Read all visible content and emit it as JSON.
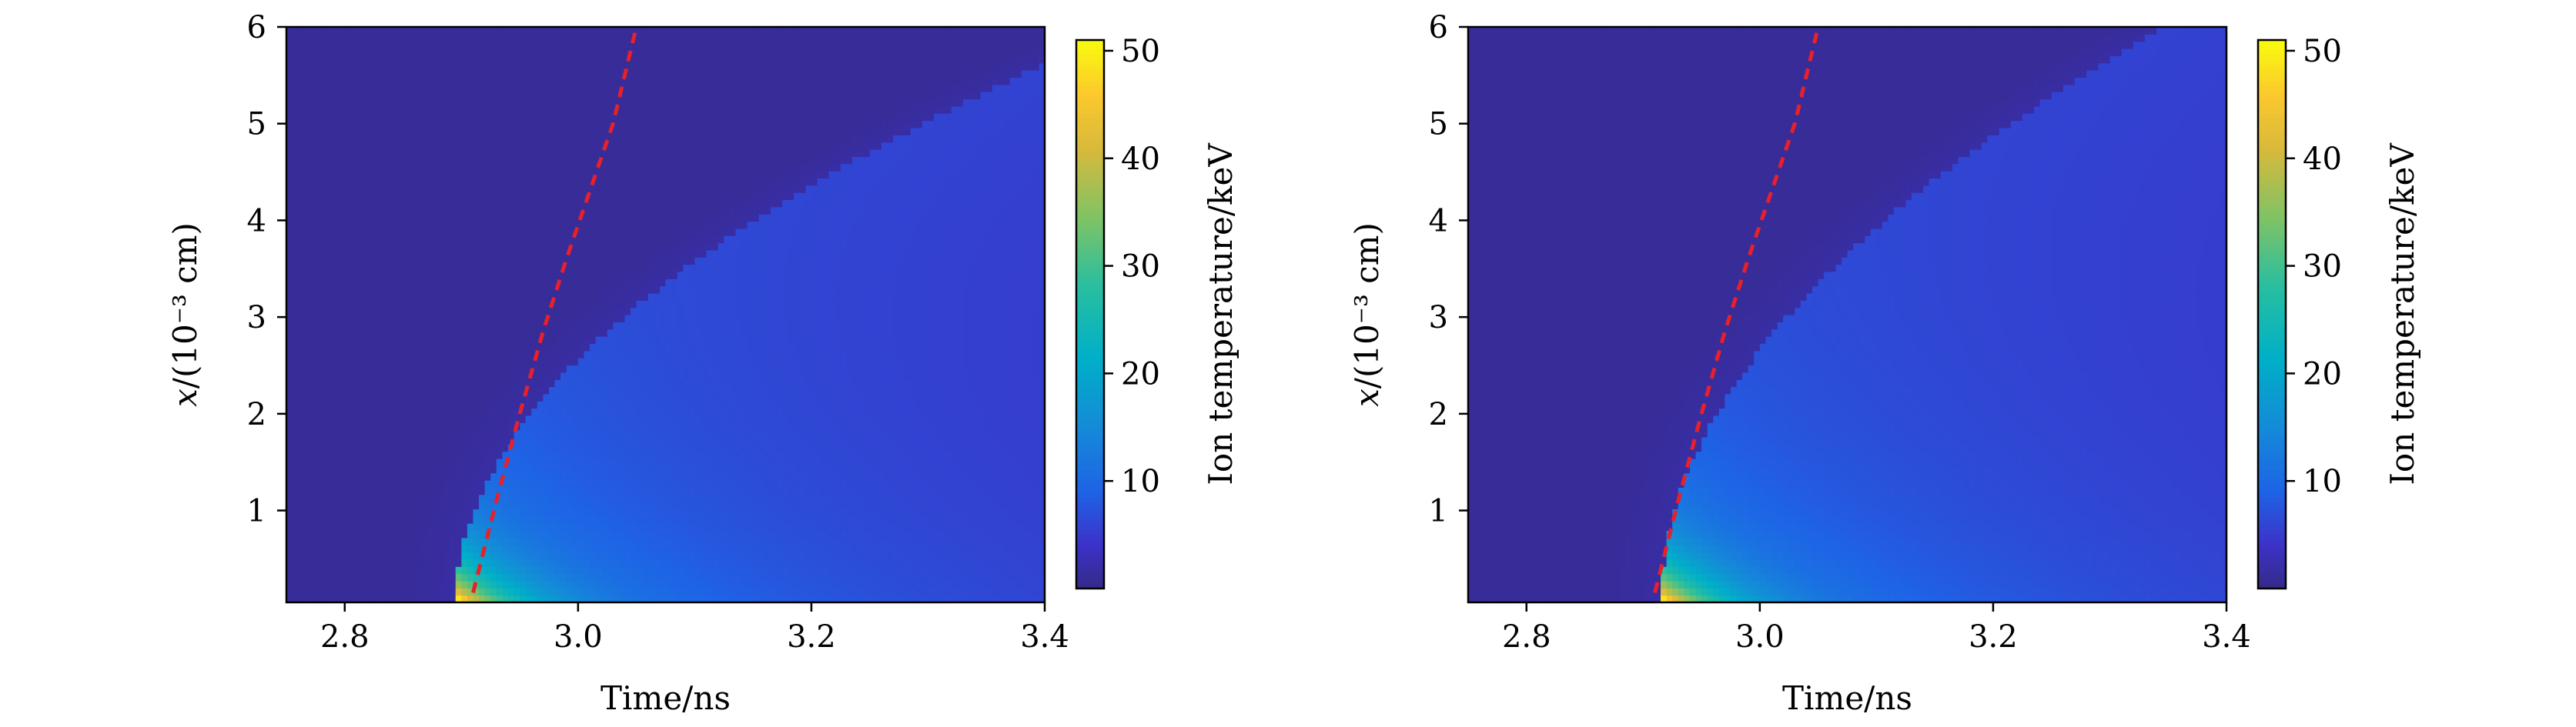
{
  "chart_data": [
    {
      "type": "heatmap",
      "panel": "left",
      "title": "",
      "xlabel": "Time/ns",
      "ylabel": "x/(10⁻³ cm)",
      "xlim": [
        2.75,
        3.4
      ],
      "ylim": [
        0.05,
        6.0
      ],
      "xticks": [
        2.8,
        3.0,
        3.2,
        3.4
      ],
      "xtick_labels": [
        "2.8",
        "3.0",
        "3.2",
        "3.4"
      ],
      "yticks": [
        1,
        2,
        3,
        4,
        5,
        6
      ],
      "ytick_labels": [
        "1",
        "2",
        "3",
        "4",
        "5",
        "6"
      ],
      "colorbar": {
        "label": "Ion temperature/keV",
        "range": [
          0,
          51
        ],
        "ticks": [
          10,
          20,
          30,
          40,
          50
        ],
        "tick_labels": [
          "10",
          "20",
          "30",
          "40",
          "50"
        ],
        "colormap": "viridis-like"
      },
      "field": {
        "description_values": "ion temperature in keV vs time and x",
        "peak_value": 50,
        "peak_time": 2.915,
        "peak_x": 0.1,
        "front_start_time": 2.895,
        "front_coeff": 0.016,
        "background_value": 3
      },
      "dashed_curve": {
        "color": "#e8202a",
        "x": [
          2.91,
          2.93,
          2.95,
          2.97,
          2.99,
          3.01,
          3.03,
          3.05
        ],
        "y": [
          0.15,
          1.1,
          2.0,
          2.85,
          3.6,
          4.3,
          5.0,
          6.0
        ]
      }
    },
    {
      "type": "heatmap",
      "panel": "right",
      "title": "",
      "xlabel": "Time/ns",
      "ylabel": "x/(10⁻³ cm)",
      "xlim": [
        2.75,
        3.4
      ],
      "ylim": [
        0.05,
        6.0
      ],
      "xticks": [
        2.8,
        3.0,
        3.2,
        3.4
      ],
      "xtick_labels": [
        "2.8",
        "3.0",
        "3.2",
        "3.4"
      ],
      "yticks": [
        1,
        2,
        3,
        4,
        5,
        6
      ],
      "ytick_labels": [
        "1",
        "2",
        "3",
        "4",
        "5",
        "6"
      ],
      "colorbar": {
        "label": "Ion temperature/keV",
        "range": [
          0,
          51
        ],
        "ticks": [
          10,
          20,
          30,
          40,
          50
        ],
        "tick_labels": [
          "10",
          "20",
          "30",
          "40",
          "50"
        ],
        "colormap": "viridis-like"
      },
      "field": {
        "description_values": "ion temperature in keV vs time and x",
        "peak_value": 50,
        "peak_time": 2.918,
        "peak_x": 0.1,
        "front_start_time": 2.915,
        "front_coeff": 0.012,
        "background_value": 3
      },
      "dashed_curve": {
        "color": "#e8202a",
        "x": [
          2.91,
          2.93,
          2.95,
          2.97,
          2.99,
          3.01,
          3.03,
          3.05
        ],
        "y": [
          0.15,
          1.1,
          2.0,
          2.85,
          3.6,
          4.3,
          5.0,
          6.0
        ]
      }
    }
  ]
}
